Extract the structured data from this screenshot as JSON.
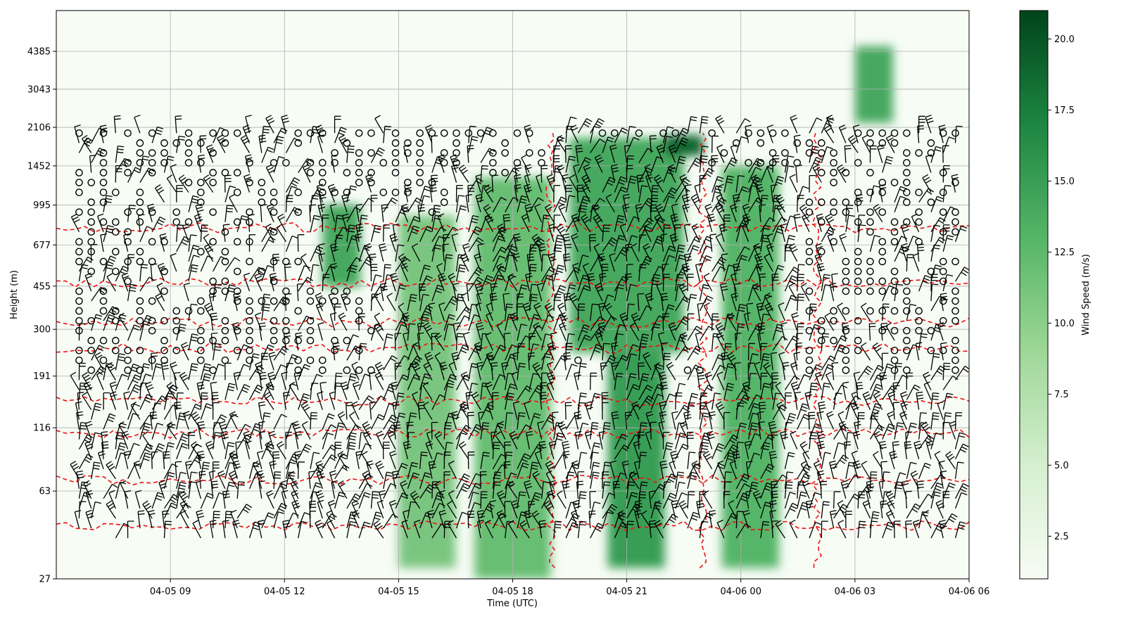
{
  "chart_data": {
    "type": "heatmap",
    "title": "",
    "xlabel": "Time (UTC)",
    "ylabel": "Height (m)",
    "colorbar_label": "Wind Speed (m/s)",
    "colormap": "Greens",
    "colorbar_range": [
      1.0,
      21.0
    ],
    "colorbar_ticks": [
      "2.5",
      "5.0",
      "7.5",
      "10.0",
      "12.5",
      "15.0",
      "17.5",
      "20.0"
    ],
    "xlim": [
      "04-05 06:00",
      "04-06 06:00"
    ],
    "x_ticks": [
      "04-05 09",
      "04-05 12",
      "04-05 15",
      "04-05 18",
      "04-05 21",
      "04-06 00",
      "04-06 03",
      "04-06 06"
    ],
    "y_scale": "log",
    "ylim": [
      27,
      6500
    ],
    "y_ticks": [
      "27",
      "63",
      "116",
      "191",
      "300",
      "455",
      "677",
      "995",
      "1452",
      "2106",
      "3043",
      "4385"
    ],
    "grid": true,
    "overlays": [
      "wind barbs (black)",
      "calm / missing-wind circles (black)",
      "dashed contour (red)"
    ],
    "wind_speed_regions_ms": [
      {
        "time": [
          "04-05 17:00",
          "04-05 19:00"
        ],
        "height_m": [
          27,
          1300
        ],
        "speed": 12
      },
      {
        "time": [
          "04-05 19:30",
          "04-05 22:30"
        ],
        "height_m": [
          240,
          1900
        ],
        "speed": 14
      },
      {
        "time": [
          "04-05 22:00",
          "04-05 23:00"
        ],
        "height_m": [
          1600,
          1950
        ],
        "speed": 19
      },
      {
        "time": [
          "04-05 20:30",
          "04-05 22:00"
        ],
        "height_m": [
          30,
          240
        ],
        "speed": 15
      },
      {
        "time": [
          "04-05 23:30",
          "04-06 01:00"
        ],
        "height_m": [
          30,
          1450
        ],
        "speed": 13
      },
      {
        "time": [
          "04-05 13:00",
          "04-05 14:00"
        ],
        "height_m": [
          450,
          1000
        ],
        "speed": 14
      },
      {
        "time": [
          "04-05 15:00",
          "04-05 16:30"
        ],
        "height_m": [
          30,
          900
        ],
        "speed": 11
      },
      {
        "time": [
          "04-06 03:00",
          "04-06 04:00"
        ],
        "height_m": [
          2200,
          4600
        ],
        "speed": 14
      }
    ]
  }
}
